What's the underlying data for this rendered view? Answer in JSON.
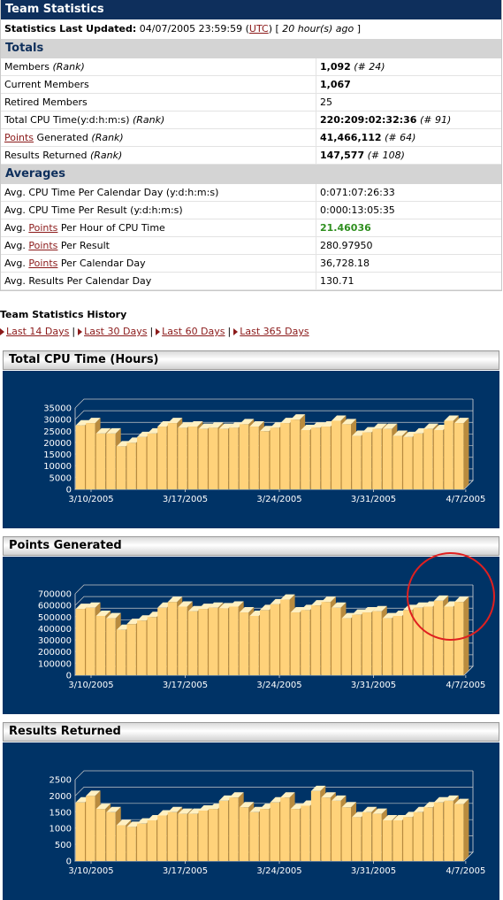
{
  "header": {
    "title": "Team Statistics"
  },
  "updated": {
    "label": "Statistics Last Updated:",
    "datetime": "04/07/2005 23:59:59",
    "tz": "UTC",
    "ago": "20 hour(s) ago"
  },
  "totals": {
    "title": "Totals",
    "rows": [
      {
        "label": "Members",
        "rank_label": "(Rank)",
        "value": "1,092",
        "rank": "(# 24)"
      },
      {
        "label": "Current Members",
        "value": "1,067"
      },
      {
        "label": "Retired Members",
        "value": "25"
      },
      {
        "label": "Total CPU Time(y:d:h:m:s)",
        "rank_label": "(Rank)",
        "value": "220:209:02:32:36",
        "rank": "(# 91)"
      },
      {
        "link": "Points",
        "label": "Generated",
        "rank_label": "(Rank)",
        "value": "41,466,112",
        "rank": "(# 64)"
      },
      {
        "label": "Results Returned",
        "rank_label": "(Rank)",
        "value": "147,577",
        "rank": "(# 108)"
      }
    ]
  },
  "averages": {
    "title": "Averages",
    "rows": [
      {
        "label": "Avg. CPU Time Per Calendar Day (y:d:h:m:s)",
        "value": "0:071:07:26:33"
      },
      {
        "label": "Avg. CPU Time Per Result (y:d:h:m:s)",
        "value": "0:000:13:05:35"
      },
      {
        "pre": "Avg.",
        "link": "Points",
        "post": "Per Hour of CPU Time",
        "value": "21.46036"
      },
      {
        "pre": "Avg.",
        "link": "Points",
        "post": "Per Result",
        "value": "280.97950"
      },
      {
        "pre": "Avg.",
        "link": "Points",
        "post": "Per Calendar Day",
        "value": "36,728.18"
      },
      {
        "label": "Avg. Results Per Calendar Day",
        "value": "130.71"
      }
    ]
  },
  "history": {
    "title": "Team Statistics History",
    "links": [
      "Last 14 Days",
      "Last 30 Days",
      "Last 60 Days",
      "Last 365 Days"
    ],
    "separator": "|"
  },
  "colors": {
    "header_bg": "#0e2f5c",
    "chart_bg": "#003366",
    "bar_front": "#ffd27a",
    "bar_side": "#b98b3e",
    "bar_top": "#fff0c2",
    "link": "#8b1a1a",
    "highlight": "#2f8f1f",
    "annotation": "#e02020"
  },
  "chart_data": [
    {
      "type": "bar",
      "title": "Total CPU Time (Hours)",
      "ylim": [
        0,
        35000
      ],
      "yticks": [
        0,
        5000,
        10000,
        15000,
        20000,
        25000,
        30000,
        35000
      ],
      "x_tick_labels": [
        "3/10/2005",
        "3/17/2005",
        "3/24/2005",
        "3/31/2005",
        "4/7/2005"
      ],
      "values": [
        27500,
        28500,
        24000,
        24000,
        18500,
        20000,
        22500,
        24000,
        27000,
        28500,
        26500,
        27000,
        26000,
        26500,
        26000,
        26500,
        28000,
        27000,
        25000,
        26500,
        28500,
        30000,
        25500,
        26500,
        27000,
        29500,
        28000,
        23000,
        24500,
        26000,
        26000,
        23000,
        22500,
        24000,
        26000,
        25500,
        29500,
        28500
      ]
    },
    {
      "type": "bar",
      "title": "Points Generated",
      "ylim": [
        0,
        700000
      ],
      "yticks": [
        0,
        100000,
        200000,
        300000,
        400000,
        500000,
        600000,
        700000
      ],
      "x_tick_labels": [
        "3/10/2005",
        "3/17/2005",
        "3/24/2005",
        "3/31/2005",
        "4/7/2005"
      ],
      "values": [
        570000,
        580000,
        510000,
        490000,
        390000,
        440000,
        470000,
        500000,
        580000,
        630000,
        590000,
        550000,
        570000,
        580000,
        575000,
        590000,
        540000,
        510000,
        560000,
        610000,
        650000,
        540000,
        560000,
        600000,
        630000,
        580000,
        490000,
        520000,
        540000,
        550000,
        490000,
        510000,
        560000,
        580000,
        590000,
        640000,
        590000,
        630000
      ]
    },
    {
      "type": "bar",
      "title": "Results Returned",
      "ylim": [
        0,
        2500
      ],
      "yticks": [
        0,
        500,
        1000,
        1500,
        2000,
        2500
      ],
      "x_tick_labels": [
        "3/10/2005",
        "3/17/2005",
        "3/24/2005",
        "3/31/2005",
        "4/7/2005"
      ],
      "values": [
        1800,
        2000,
        1600,
        1500,
        1100,
        1050,
        1150,
        1250,
        1400,
        1500,
        1450,
        1450,
        1550,
        1600,
        1850,
        1950,
        1650,
        1500,
        1600,
        1800,
        1950,
        1600,
        1700,
        2150,
        1950,
        1850,
        1650,
        1350,
        1500,
        1450,
        1250,
        1250,
        1350,
        1500,
        1650,
        1800,
        1850,
        1750
      ]
    }
  ]
}
